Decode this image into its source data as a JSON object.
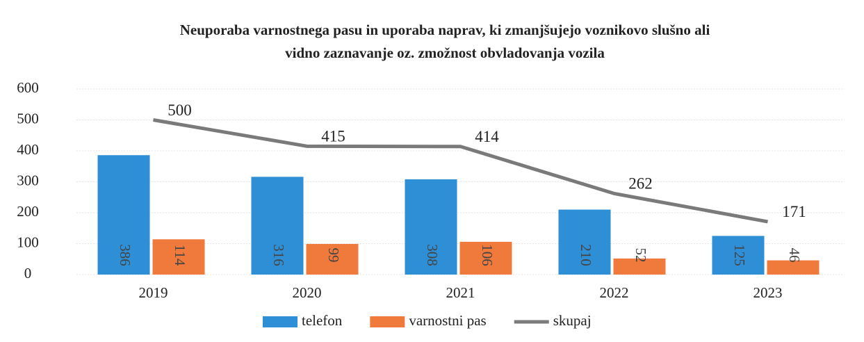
{
  "chart_data": {
    "type": "bar_line",
    "title": [
      "Neuporaba varnostnega pasu in uporaba naprav, ki zmanjšujejo voznikovo slušno ali",
      "vidno zaznavanje oz. zmožnost obvladovanja vozila"
    ],
    "categories": [
      "2019",
      "2020",
      "2021",
      "2022",
      "2023"
    ],
    "series": [
      {
        "name": "telefon",
        "type": "bar",
        "color": "#2e8fd6",
        "values": [
          386,
          316,
          308,
          210,
          125
        ]
      },
      {
        "name": "varnostni pas",
        "type": "bar",
        "color": "#f07a3c",
        "values": [
          114,
          99,
          106,
          52,
          46
        ]
      },
      {
        "name": "skupaj",
        "type": "line",
        "color": "#7a7a7a",
        "values": [
          500,
          415,
          414,
          262,
          171
        ]
      }
    ],
    "ylim": [
      0,
      600
    ],
    "yticks": [
      0,
      100,
      200,
      300,
      400,
      500,
      600
    ],
    "grid": true,
    "legend": "bottom"
  }
}
